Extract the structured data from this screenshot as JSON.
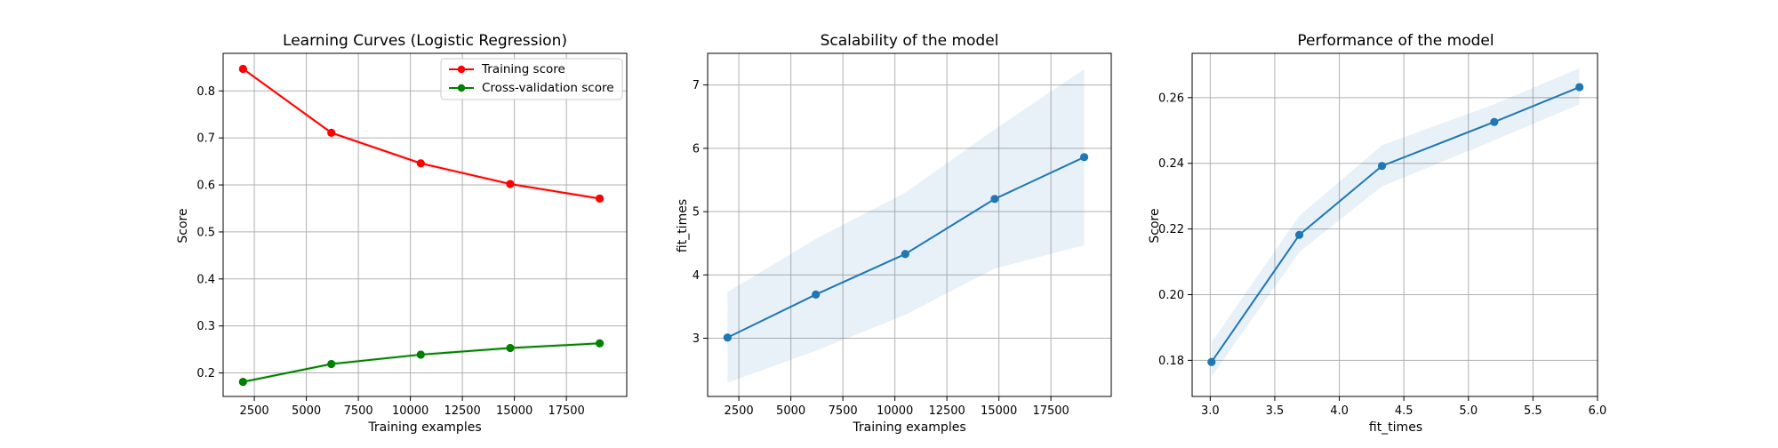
{
  "chart_data": [
    {
      "type": "line",
      "title": "Learning Curves (Logistic Regression)",
      "xlabel": "Training examples",
      "ylabel": "Score",
      "xlim": [
        1000,
        20400
      ],
      "ylim": [
        0.15,
        0.88
      ],
      "xticks": [
        2500,
        5000,
        7500,
        10000,
        12500,
        15000,
        17500
      ],
      "yticks": [
        0.2,
        0.3,
        0.4,
        0.5,
        0.6,
        0.7,
        0.8
      ],
      "ytick_labels": [
        "0.2",
        "0.3",
        "0.4",
        "0.5",
        "0.6",
        "0.7",
        "0.8"
      ],
      "grid": true,
      "legend": "top-right",
      "x": [
        1955,
        6200,
        10500,
        14800,
        19100
      ],
      "series": [
        {
          "name": "Training score",
          "color": "#ff0000",
          "values": [
            0.847,
            0.711,
            0.646,
            0.602,
            0.571
          ],
          "band": 0.004
        },
        {
          "name": "Cross-validation score",
          "color": "#008000",
          "values": [
            0.181,
            0.219,
            0.239,
            0.253,
            0.263
          ],
          "band": 0.004
        }
      ]
    },
    {
      "type": "line",
      "title": "Scalability of the model",
      "xlabel": "Training examples",
      "ylabel": "fit_times",
      "xlim": [
        1000,
        20400
      ],
      "ylim": [
        2.08,
        7.5
      ],
      "xticks": [
        2500,
        5000,
        7500,
        10000,
        12500,
        15000,
        17500
      ],
      "yticks": [
        3,
        4,
        5,
        6,
        7
      ],
      "ytick_labels": [
        "3",
        "4",
        "5",
        "6",
        "7"
      ],
      "grid": true,
      "x": [
        1955,
        6200,
        10500,
        14800,
        19100
      ],
      "series": [
        {
          "color": "#1f77b4",
          "values": [
            3.01,
            3.69,
            4.33,
            5.2,
            5.86
          ],
          "lower": [
            2.3,
            2.8,
            3.37,
            4.1,
            4.47
          ],
          "upper": [
            3.73,
            4.57,
            5.3,
            6.3,
            7.25
          ]
        }
      ]
    },
    {
      "type": "line",
      "title": "Performance of the model",
      "xlabel": "fit_times",
      "ylabel": "Score",
      "xlim": [
        2.86,
        6.0
      ],
      "ylim": [
        0.169,
        0.2735
      ],
      "xticks": [
        3.0,
        3.5,
        4.0,
        4.5,
        5.0,
        5.5,
        6.0
      ],
      "xtick_labels": [
        "3.0",
        "3.5",
        "4.0",
        "4.5",
        "5.0",
        "5.5",
        "6.0"
      ],
      "yticks": [
        0.18,
        0.2,
        0.22,
        0.24,
        0.26
      ],
      "ytick_labels": [
        "0.18",
        "0.20",
        "0.22",
        "0.24",
        "0.26"
      ],
      "grid": true,
      "x": [
        3.01,
        3.69,
        4.33,
        5.2,
        5.86
      ],
      "series": [
        {
          "color": "#1f77b4",
          "values": [
            0.1795,
            0.2182,
            0.2392,
            0.2526,
            0.2632
          ],
          "lower": [
            0.175,
            0.213,
            0.233,
            0.247,
            0.258
          ],
          "upper": [
            0.1855,
            0.224,
            0.2455,
            0.258,
            0.269
          ]
        }
      ]
    }
  ]
}
